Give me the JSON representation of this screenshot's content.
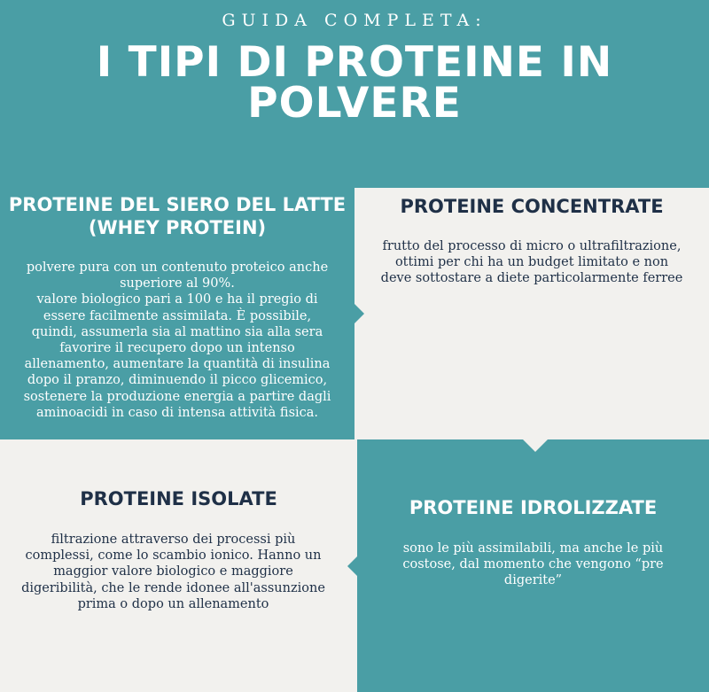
{
  "header": {
    "subtitle": "GUIDA COMPLETA:",
    "title_line1": "I TIPI DI PROTEINE IN",
    "title_line2": "POLVERE"
  },
  "sections": [
    {
      "heading_lines": [
        "PROTEINE DEL SIERO DEL LATTE",
        "(WHEY PROTEIN)"
      ],
      "body_lines": [
        "polvere pura con un contenuto proteico anche",
        "superiore al 90%.",
        "valore biologico pari a 100 e ha il pregio di",
        "essere facilmente assimilata. È possibile,",
        "quindi, assumerla sia al mattino sia alla sera",
        "favorire il recupero dopo un intenso",
        "allenamento, aumentare la quantità di insulina",
        "dopo il pranzo, diminuendo il picco glicemico,",
        "sostenere la produzione energia a partire dagli",
        "aminoacidi in caso di intensa attività fisica."
      ]
    },
    {
      "heading_lines": [
        "PROTEINE CONCENTRATE"
      ],
      "body_lines": [
        "frutto del processo di micro o ultrafiltrazione,",
        "ottimi per chi ha un budget limitato e non",
        "deve sottostare a diete particolarmente ferree"
      ]
    },
    {
      "heading_lines": [
        "PROTEINE ISOLATE"
      ],
      "body_lines": [
        "filtrazione attraverso dei processi più",
        "complessi, come lo scambio ionico. Hanno un",
        "maggior valore biologico e maggiore",
        "digeribilità, che le rende idonee all'assunzione",
        "prima o dopo un allenamento"
      ]
    },
    {
      "heading_lines": [
        "PROTEINE IDROLIZZATE"
      ],
      "body_lines": [
        "sono le più assimilabili, ma anche le più",
        "costose, dal momento che vengono “pre",
        "digerite”"
      ]
    }
  ],
  "colors": {
    "teal": "#4a9ea5",
    "cream": "#f2f1ee",
    "navy_text": "#1f3047",
    "white_text": "#ffffff"
  }
}
